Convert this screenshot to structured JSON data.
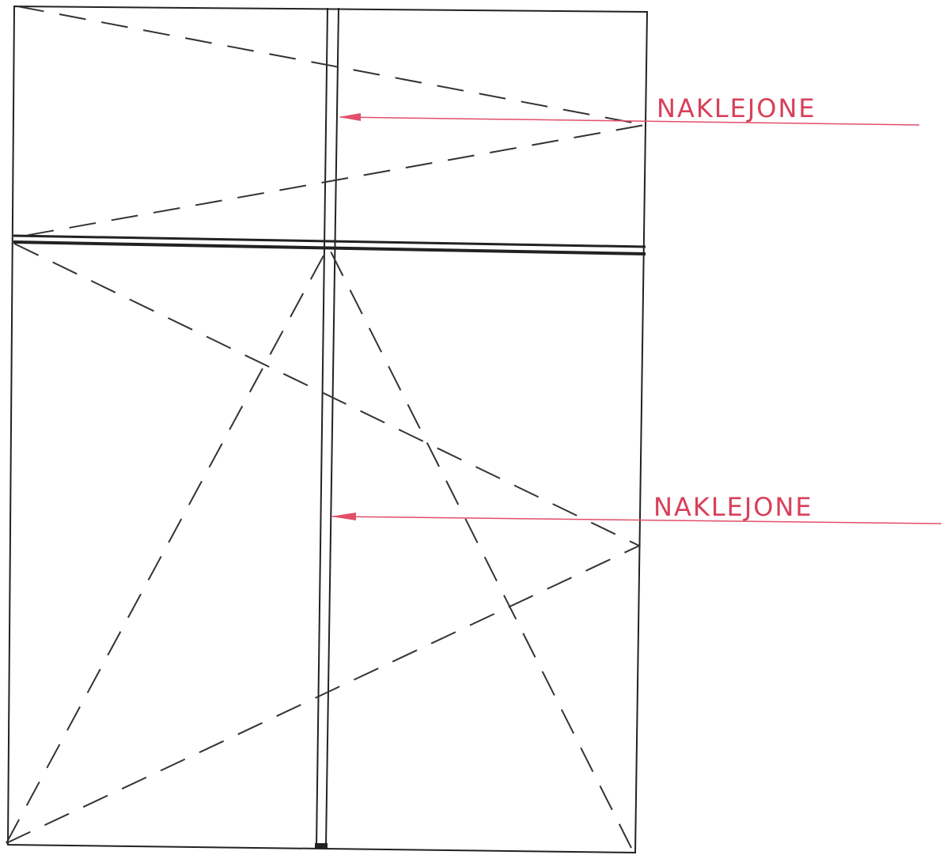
{
  "annotations": [
    "NAKLEJONE",
    "NAKLEJONE"
  ]
}
